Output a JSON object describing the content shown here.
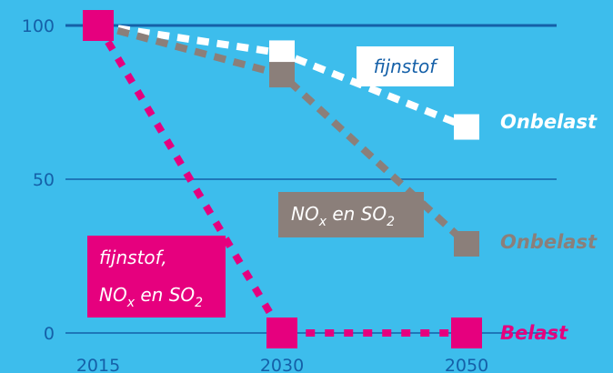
{
  "chart_data": {
    "type": "line",
    "x": [
      2015,
      2030,
      2050
    ],
    "ylim": [
      0,
      100
    ],
    "yticks": [
      0,
      50,
      100
    ],
    "grid": true,
    "colors": {
      "background": "#3dbdec",
      "grid": "#1560a8",
      "fijnstof": "#ffffff",
      "nox_so2": "#8b7f7a",
      "belast": "#e6007e"
    },
    "series": [
      {
        "key": "fijnstof",
        "values": [
          100,
          91,
          67
        ],
        "label": "fijnstof",
        "end_label": "Onbelast"
      },
      {
        "key": "nox_so2",
        "values": [
          100,
          84,
          29
        ],
        "label_main": "NO",
        "label_sub": "x",
        "label_rest": " en SO",
        "label_sub2": "2",
        "end_label": "Onbelast"
      },
      {
        "key": "belast",
        "values": [
          100,
          0,
          0
        ],
        "label_line1": "fijnstof,",
        "label_main": "NO",
        "label_sub": "x",
        "label_rest": " en SO",
        "label_sub2": "2",
        "end_label": "Belast"
      }
    ]
  }
}
